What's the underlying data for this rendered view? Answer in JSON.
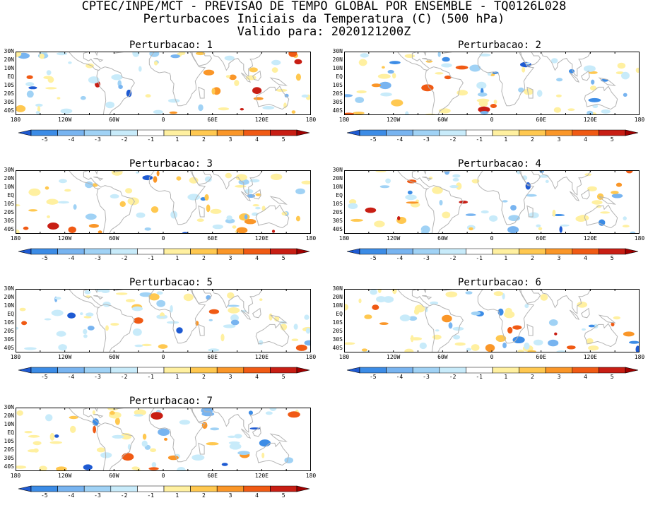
{
  "header": {
    "line1": "CPTEC/INPE/MCT - PREVISAO DE TEMPO GLOBAL POR ENSEMBLE - TQ0126L028",
    "line2": "Perturbacoes Iniciais da Temperatura (C) (500 hPa)",
    "line3": "Valido para: 2020121200Z"
  },
  "panels": [
    {
      "title": "Perturbacao: 1"
    },
    {
      "title": "Perturbacao: 2"
    },
    {
      "title": "Perturbacao: 3"
    },
    {
      "title": "Perturbacao: 4"
    },
    {
      "title": "Perturbacao: 5"
    },
    {
      "title": "Perturbacao: 6"
    },
    {
      "title": "Perturbacao: 7"
    }
  ],
  "lat_labels": [
    "30N",
    "20N",
    "10N",
    "EQ",
    "10S",
    "20S",
    "30S",
    "40S"
  ],
  "lon_labels": [
    "180",
    "120W",
    "60W",
    "0",
    "60E",
    "120E",
    "180"
  ],
  "colorbar": {
    "labels": [
      "-5",
      "-4",
      "-3",
      "-2",
      "-1",
      "1",
      "2",
      "3",
      "4",
      "5"
    ],
    "colors": [
      "#1e5ad2",
      "#3c8ce6",
      "#78b4f0",
      "#a0d2f5",
      "#c8ebfa",
      "#ffffff",
      "#fff0a0",
      "#ffc850",
      "#fa9628",
      "#f05a14",
      "#c81e14",
      "#a00000"
    ]
  },
  "colors": {
    "land_outline": "#b4b4b4",
    "frame": "#000000"
  }
}
